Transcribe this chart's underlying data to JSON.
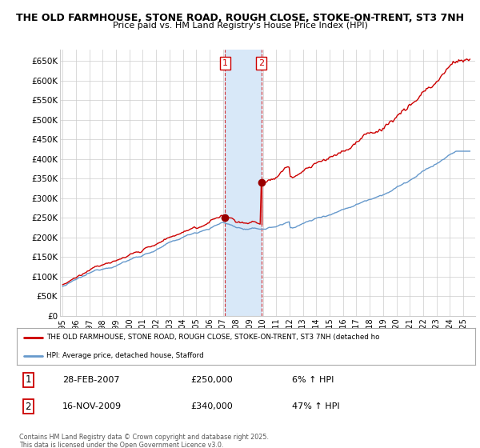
{
  "title1": "THE OLD FARMHOUSE, STONE ROAD, ROUGH CLOSE, STOKE-ON-TRENT, ST3 7NH",
  "title2": "Price paid vs. HM Land Registry's House Price Index (HPI)",
  "ylim": [
    0,
    680000
  ],
  "yticks": [
    0,
    50000,
    100000,
    150000,
    200000,
    250000,
    300000,
    350000,
    400000,
    450000,
    500000,
    550000,
    600000,
    650000
  ],
  "ytick_labels": [
    "£0",
    "£50K",
    "£100K",
    "£150K",
    "£200K",
    "£250K",
    "£300K",
    "£350K",
    "£400K",
    "£450K",
    "£500K",
    "£550K",
    "£600K",
    "£650K"
  ],
  "transaction1_date": 2007.16,
  "transaction1_price": 250000,
  "transaction2_date": 2009.88,
  "transaction2_price": 340000,
  "line_color_red": "#cc0000",
  "line_color_blue": "#6699cc",
  "shade_color": "#d8e8f8",
  "grid_color": "#cccccc",
  "legend_label_red": "THE OLD FARMHOUSE, STONE ROAD, ROUGH CLOSE, STOKE-ON-TRENT, ST3 7NH (detached ho",
  "legend_label_blue": "HPI: Average price, detached house, Stafford",
  "annotation1_date": "28-FEB-2007",
  "annotation1_price": "£250,000",
  "annotation1_hpi": "6% ↑ HPI",
  "annotation2_date": "16-NOV-2009",
  "annotation2_price": "£340,000",
  "annotation2_hpi": "47% ↑ HPI",
  "footer_text": "Contains HM Land Registry data © Crown copyright and database right 2025.\nThis data is licensed under the Open Government Licence v3.0."
}
